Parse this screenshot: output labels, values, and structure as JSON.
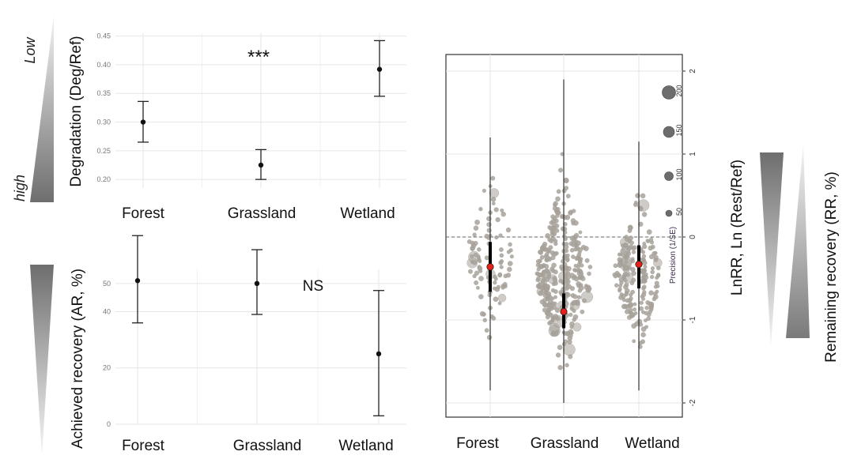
{
  "colors": {
    "grid": "#e6e6e6",
    "errorbar": "#222222",
    "point": "#111111",
    "scatter": "#a8a39b",
    "mean": "#e8201a",
    "panel_border": "#333333",
    "wedge_dark": "#6e6e6e",
    "wedge_light": "#f2f2f2"
  },
  "chart_data": [
    {
      "type": "scatter",
      "subtype": "errorbar",
      "ylabel": "Degradation (Deg/Ref)",
      "categories": [
        "Forest",
        "Grassland",
        "Wetland"
      ],
      "means": [
        0.3,
        0.225,
        0.392
      ],
      "lower": [
        0.265,
        0.2,
        0.345
      ],
      "upper": [
        0.336,
        0.252,
        0.442
      ],
      "ylim": [
        0.185,
        0.455
      ],
      "yticks": [
        "0.20",
        "0.25",
        "0.30",
        "0.35",
        "0.40",
        "0.45"
      ],
      "annotation": "***",
      "wedge_labels": {
        "top": "Low",
        "bottom": "high"
      },
      "grid": true
    },
    {
      "type": "scatter",
      "subtype": "errorbar",
      "ylabel": "Achieved recovery (AR, %)",
      "categories": [
        "Forest",
        "Grassland",
        "Wetland"
      ],
      "means": [
        51.0,
        50.0,
        25.0
      ],
      "lower": [
        36.0,
        39.0,
        3.0
      ],
      "upper": [
        67.0,
        62.0,
        47.5
      ],
      "ylim": [
        0,
        55
      ],
      "yticks": [
        "0",
        "20",
        "40",
        "50"
      ],
      "annotation": "NS",
      "grid": true
    },
    {
      "type": "scatter",
      "subtype": "beeswarm",
      "ylabel": "LnRR, Ln (Rest/Ref)",
      "ylabel_right": "Remaining recovery (RR, %)",
      "categories": [
        "Forest",
        "Grassland",
        "Wetland"
      ],
      "means": [
        -0.36,
        -0.9,
        -0.33
      ],
      "ci_lower": [
        -0.66,
        -1.1,
        -0.62
      ],
      "ci_upper": [
        -0.06,
        -0.68,
        -0.1
      ],
      "range_lower": [
        -1.85,
        -2.0,
        -1.85
      ],
      "range_upper": [
        1.2,
        1.9,
        1.15
      ],
      "ylim": [
        -2.1,
        2.1
      ],
      "yticks": [
        "-2",
        "-1",
        "0",
        "1",
        "2"
      ],
      "reference_line": 0,
      "size_legend_title": "Precision (1/SE)",
      "size_legend": [
        "50",
        "100",
        "150",
        "200"
      ]
    }
  ]
}
